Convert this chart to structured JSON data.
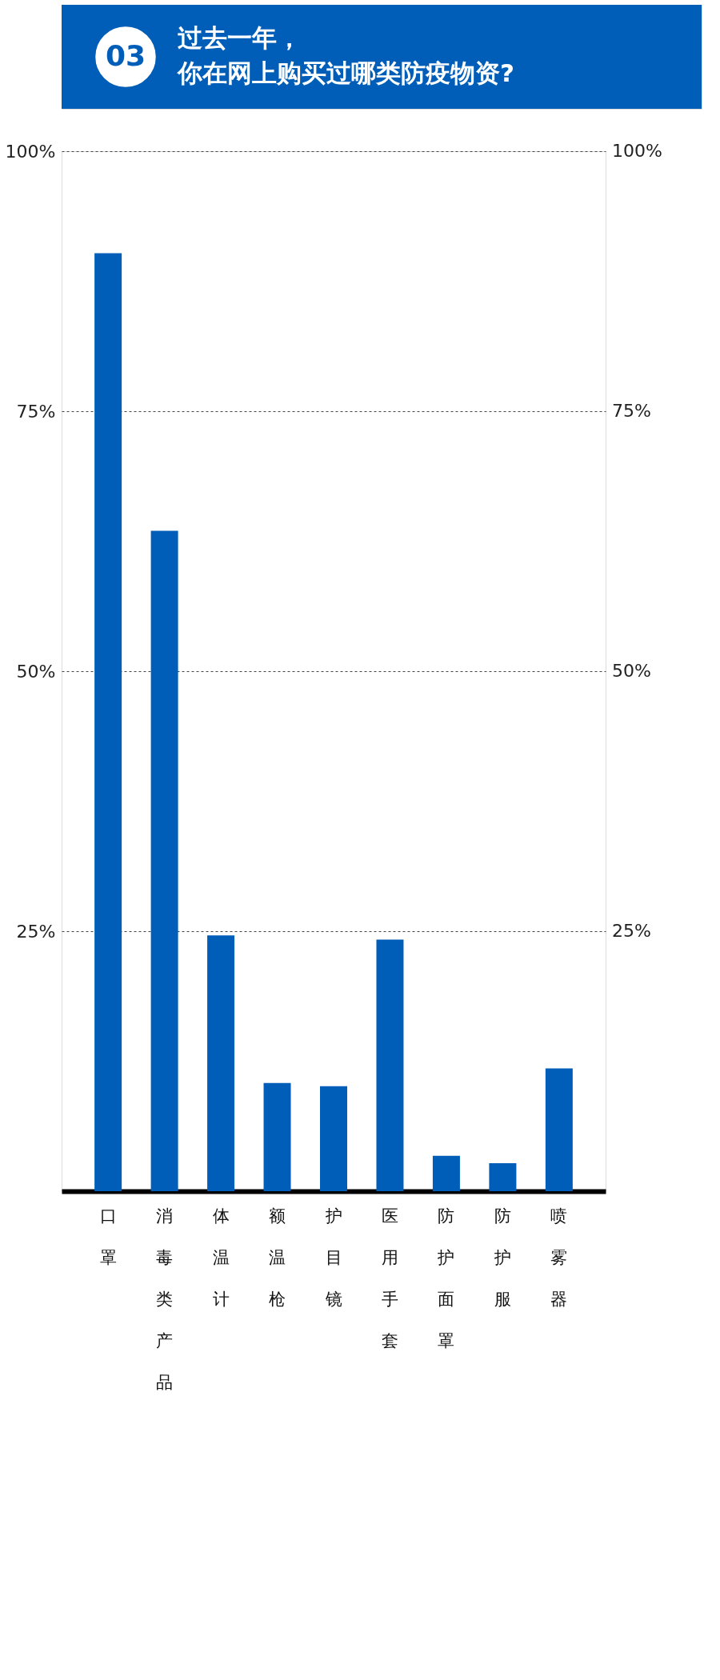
{
  "chart_data": {
    "type": "bar",
    "title": "过去一年，",
    "subtitle": "你在网上购买过哪类防疫物资?",
    "annotations": [
      "03"
    ],
    "categories": [
      "口罩",
      "消毒类产品",
      "体温计",
      "额温枪",
      "护目镜",
      "医用手套",
      "防护面罩",
      "防护服",
      "喷雾器"
    ],
    "values": [
      90.2,
      63.5,
      24.6,
      10.4,
      10.1,
      24.2,
      3.4,
      2.7,
      11.8
    ],
    "color": "#005eb8",
    "ylim": [
      0,
      100
    ],
    "yticks": [
      {
        "value": 25,
        "label": "25%"
      },
      {
        "value": 50,
        "label": "50%"
      },
      {
        "value": 75,
        "label": "75%"
      },
      {
        "value": 100,
        "label": "100%"
      }
    ],
    "y2lim": [
      0,
      100
    ],
    "y2ticks": [
      {
        "value": 25,
        "label": "25%"
      },
      {
        "value": 50,
        "label": "50%"
      },
      {
        "value": 75,
        "label": "75%"
      },
      {
        "value": 100,
        "label": "100%"
      }
    ],
    "grid": "y"
  }
}
